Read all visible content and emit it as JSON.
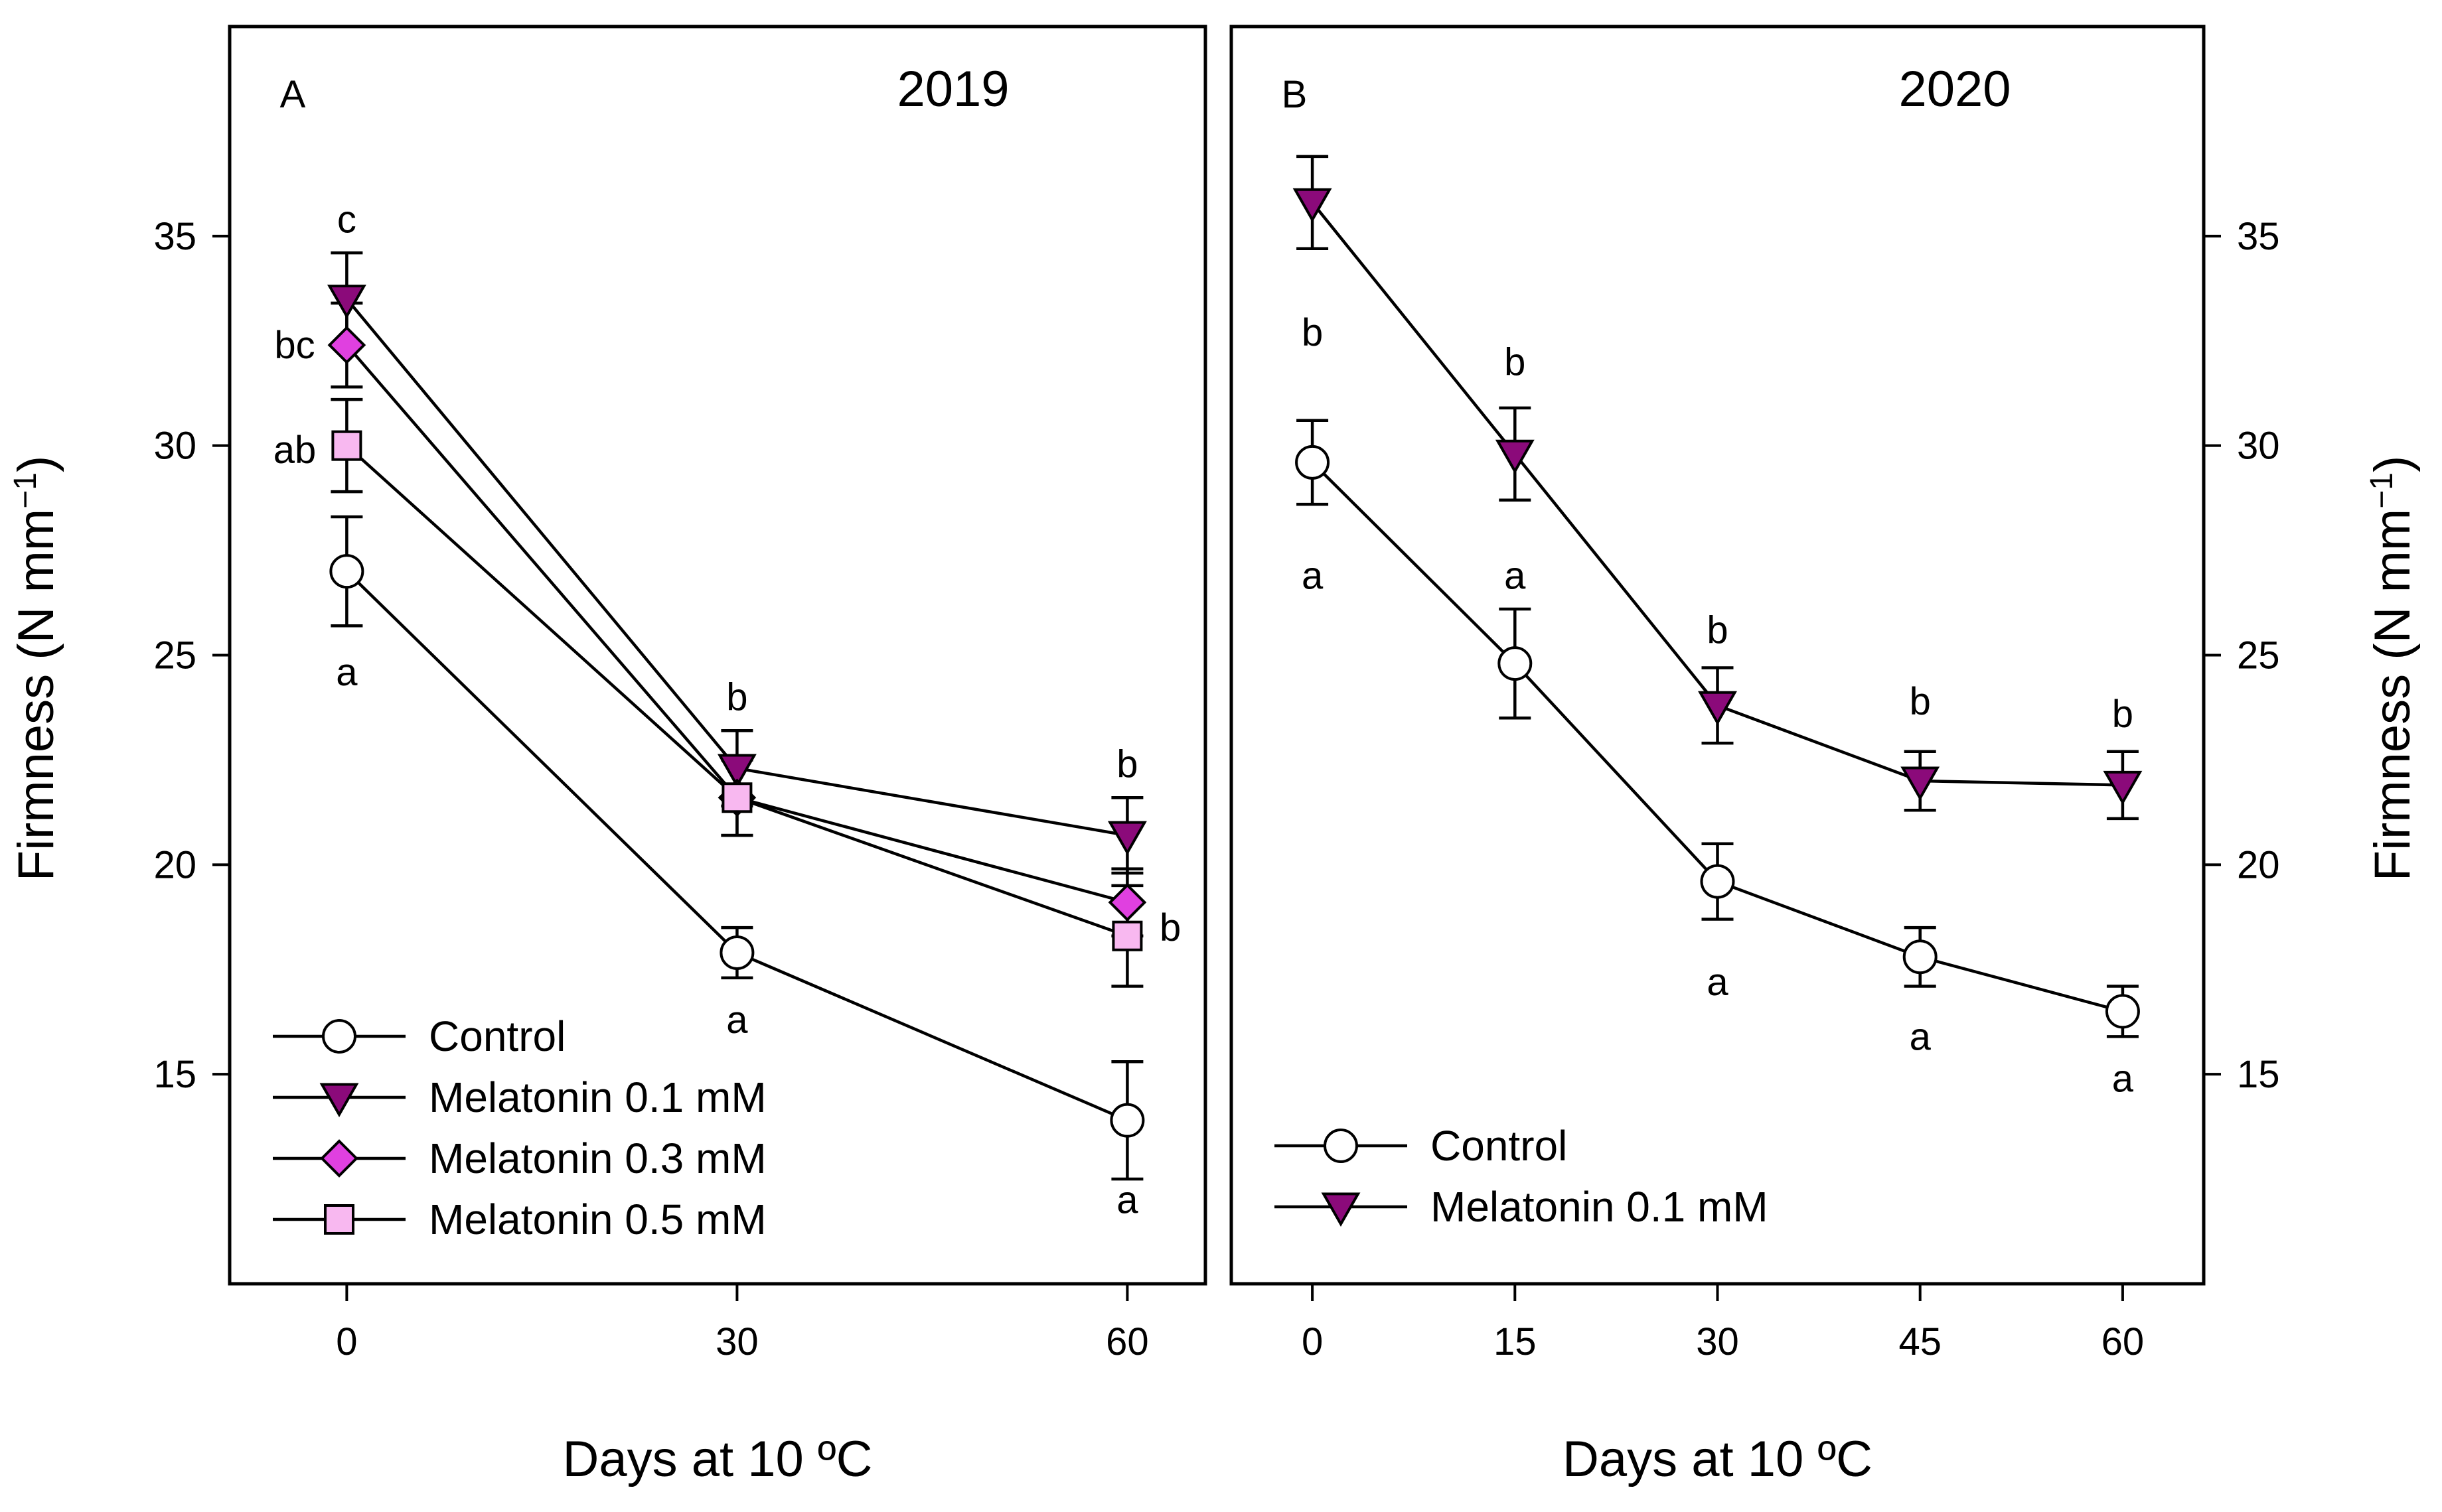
{
  "chart_data": [
    {
      "type": "line",
      "panel": "A",
      "title": "2019",
      "xlabel": "Days at 10 ºC",
      "ylabel": "Firmness (N mm",
      "ylabel_sup": "−1",
      "ylabel_close": ")",
      "ylabel_side": "left",
      "xlim": [
        -9,
        66
      ],
      "ylim": [
        10,
        40
      ],
      "x_ticks": [
        0,
        30,
        60
      ],
      "y_ticks": [
        15,
        20,
        25,
        30,
        35
      ],
      "x": [
        0,
        30,
        60
      ],
      "series": [
        {
          "name": "Control",
          "marker": "circle",
          "color": "#ffffff",
          "values": [
            27.0,
            17.9,
            13.9
          ],
          "errors": [
            1.3,
            0.6,
            1.4
          ]
        },
        {
          "name": "Melatonin 0.1 mM",
          "marker": "triangle-down",
          "color": "#8b0a7a",
          "values": [
            33.5,
            22.3,
            20.7
          ],
          "errors": [
            1.1,
            0.9,
            0.9
          ]
        },
        {
          "name": "Melatonin 0.3 mM",
          "marker": "diamond",
          "color": "#e040e0",
          "values": [
            32.4,
            21.6,
            19.1
          ],
          "errors": [
            1.0,
            0.9,
            0.8
          ]
        },
        {
          "name": "Melatonin 0.5 mM",
          "marker": "square",
          "color": "#f8b8f0",
          "values": [
            30.0,
            21.6,
            18.3
          ],
          "errors": [
            1.1,
            0.9,
            1.2
          ]
        }
      ],
      "annotations": [
        {
          "x": 0,
          "y": 35.4,
          "text": "c"
        },
        {
          "x": -4,
          "y": 32.4,
          "text": "bc"
        },
        {
          "x": -4,
          "y": 29.9,
          "text": "ab"
        },
        {
          "x": 0,
          "y": 24.6,
          "text": "a"
        },
        {
          "x": 30,
          "y": 24.0,
          "text": "b"
        },
        {
          "x": 30,
          "y": 16.3,
          "text": "a"
        },
        {
          "x": 60,
          "y": 22.4,
          "text": "b"
        },
        {
          "x": 63.3,
          "y": 18.5,
          "text": "b"
        },
        {
          "x": 60,
          "y": 12.0,
          "text": "a"
        }
      ],
      "legend": {
        "position": "bottom-left",
        "entries": [
          "Control",
          "Melatonin 0.1 mM",
          "Melatonin 0.3 mM",
          "Melatonin 0.5 mM"
        ]
      }
    },
    {
      "type": "line",
      "panel": "B",
      "title": "2020",
      "xlabel": "Days at 10 ºC",
      "ylabel": "Firmness (N mm",
      "ylabel_sup": "−1",
      "ylabel_close": ")",
      "ylabel_side": "right",
      "xlim": [
        -6,
        66
      ],
      "ylim": [
        10,
        40
      ],
      "x_ticks": [
        0,
        15,
        30,
        45,
        60
      ],
      "y_ticks": [
        15,
        20,
        25,
        30,
        35
      ],
      "x": [
        0,
        15,
        30,
        45,
        60
      ],
      "series": [
        {
          "name": "Control",
          "marker": "circle",
          "color": "#ffffff",
          "values": [
            29.6,
            24.8,
            19.6,
            17.8,
            16.5
          ],
          "errors": [
            1.0,
            1.3,
            0.9,
            0.7,
            0.6
          ]
        },
        {
          "name": "Melatonin 0.1 mM",
          "marker": "triangle-down",
          "color": "#8b0a7a",
          "values": [
            35.8,
            29.8,
            23.8,
            22.0,
            21.9
          ],
          "errors": [
            1.1,
            1.1,
            0.9,
            0.7,
            0.8
          ]
        }
      ],
      "annotations": [
        {
          "x": 0,
          "y": 32.7,
          "text": "b"
        },
        {
          "x": 15,
          "y": 26.9,
          "text": "a"
        },
        {
          "x": 15,
          "y": 32.0,
          "text": "b"
        },
        {
          "x": 0,
          "y": 26.9,
          "text": "a"
        },
        {
          "x": 30,
          "y": 25.6,
          "text": "b"
        },
        {
          "x": 30,
          "y": 17.2,
          "text": "a"
        },
        {
          "x": 45,
          "y": 23.9,
          "text": "b"
        },
        {
          "x": 45,
          "y": 15.9,
          "text": "a"
        },
        {
          "x": 60,
          "y": 23.6,
          "text": "b"
        },
        {
          "x": 60,
          "y": 14.9,
          "text": "a"
        }
      ],
      "legend": {
        "position": "bottom-left",
        "entries": [
          "Control",
          "Melatonin 0.1 mM"
        ]
      }
    }
  ]
}
